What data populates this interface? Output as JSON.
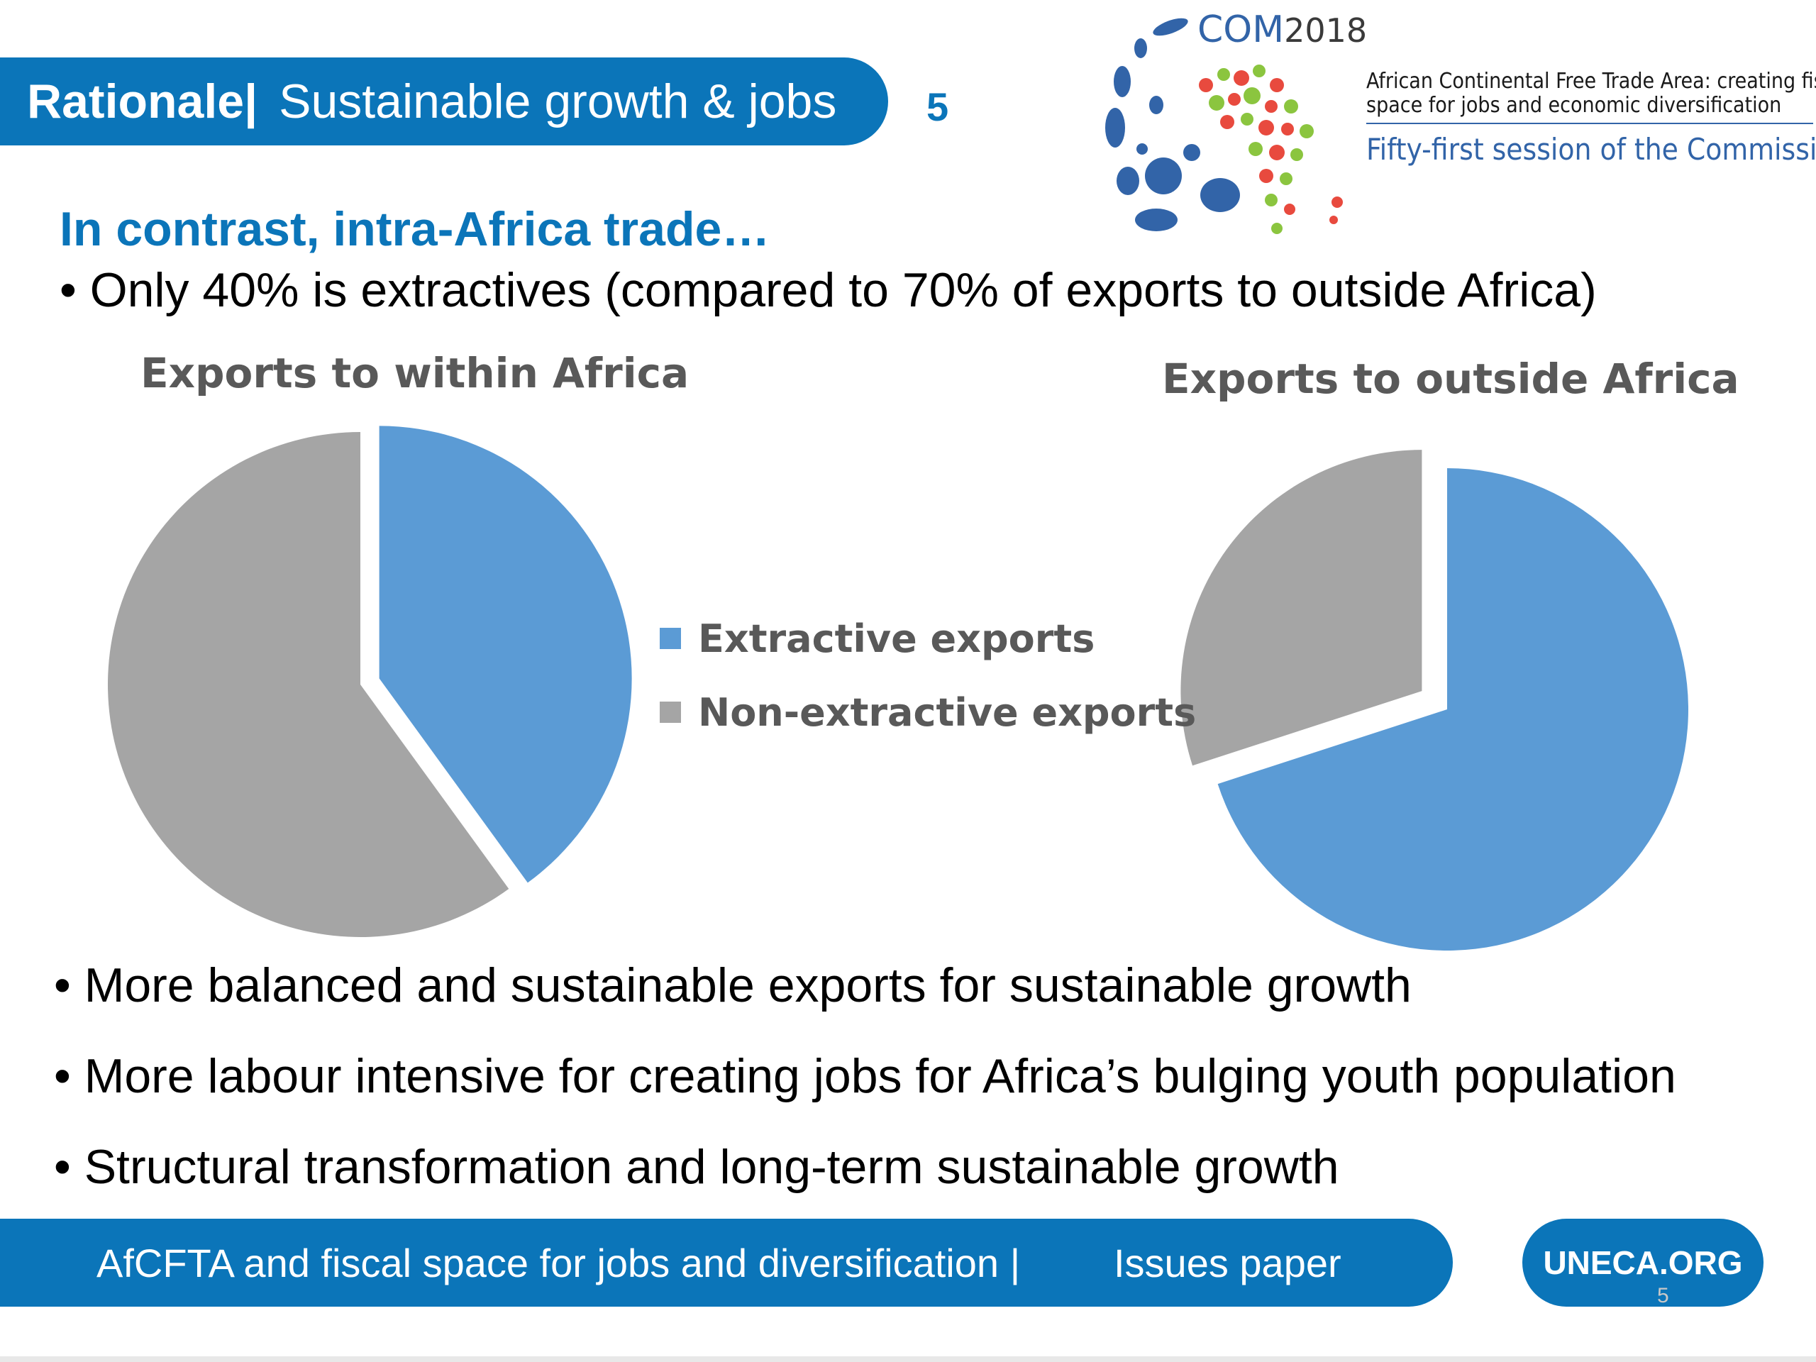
{
  "header": {
    "title_bold": "Rationale|",
    "title_rest": "Sustainable growth & jobs",
    "slide_number": "5"
  },
  "logo": {
    "com": "COM",
    "year": "2018",
    "subtitle_line1": "African Continental Free Trade Area: creating fiscal",
    "subtitle_line2": "space for jobs and economic diversification",
    "session": "Fifty-first session of the Commission"
  },
  "body": {
    "lead": "In contrast, intra-Africa trade…",
    "bullet_top": "Only 40% is extractives (compared to 70% of exports to outside Africa)",
    "bullets": [
      "More balanced and sustainable exports for sustainable growth",
      "More labour intensive for creating jobs for Africa’s bulging youth population",
      "Structural transformation and long-term sustainable growth"
    ]
  },
  "colors": {
    "brand_blue": "#0b75b9",
    "extractive": "#5b9bd5",
    "non_extractive": "#a5a5a5"
  },
  "chart_data": [
    {
      "type": "pie",
      "title": "Exports to within Africa",
      "categories": [
        "Extractive exports",
        "Non-extractive exports"
      ],
      "values": [
        40,
        60
      ],
      "exploded": "Extractive exports",
      "legend": "right"
    },
    {
      "type": "pie",
      "title": "Exports to outside Africa",
      "categories": [
        "Extractive exports",
        "Non-extractive exports"
      ],
      "values": [
        70,
        30
      ],
      "exploded": "Non-extractive exports",
      "legend": "left"
    }
  ],
  "legend": {
    "items": [
      {
        "label": "Extractive exports"
      },
      {
        "label": "Non-extractive exports"
      }
    ]
  },
  "footer": {
    "left": "AfCFTA and fiscal space for jobs and diversification |",
    "right": "Issues paper",
    "link": "UNECA.ORG",
    "page_number": "5"
  }
}
